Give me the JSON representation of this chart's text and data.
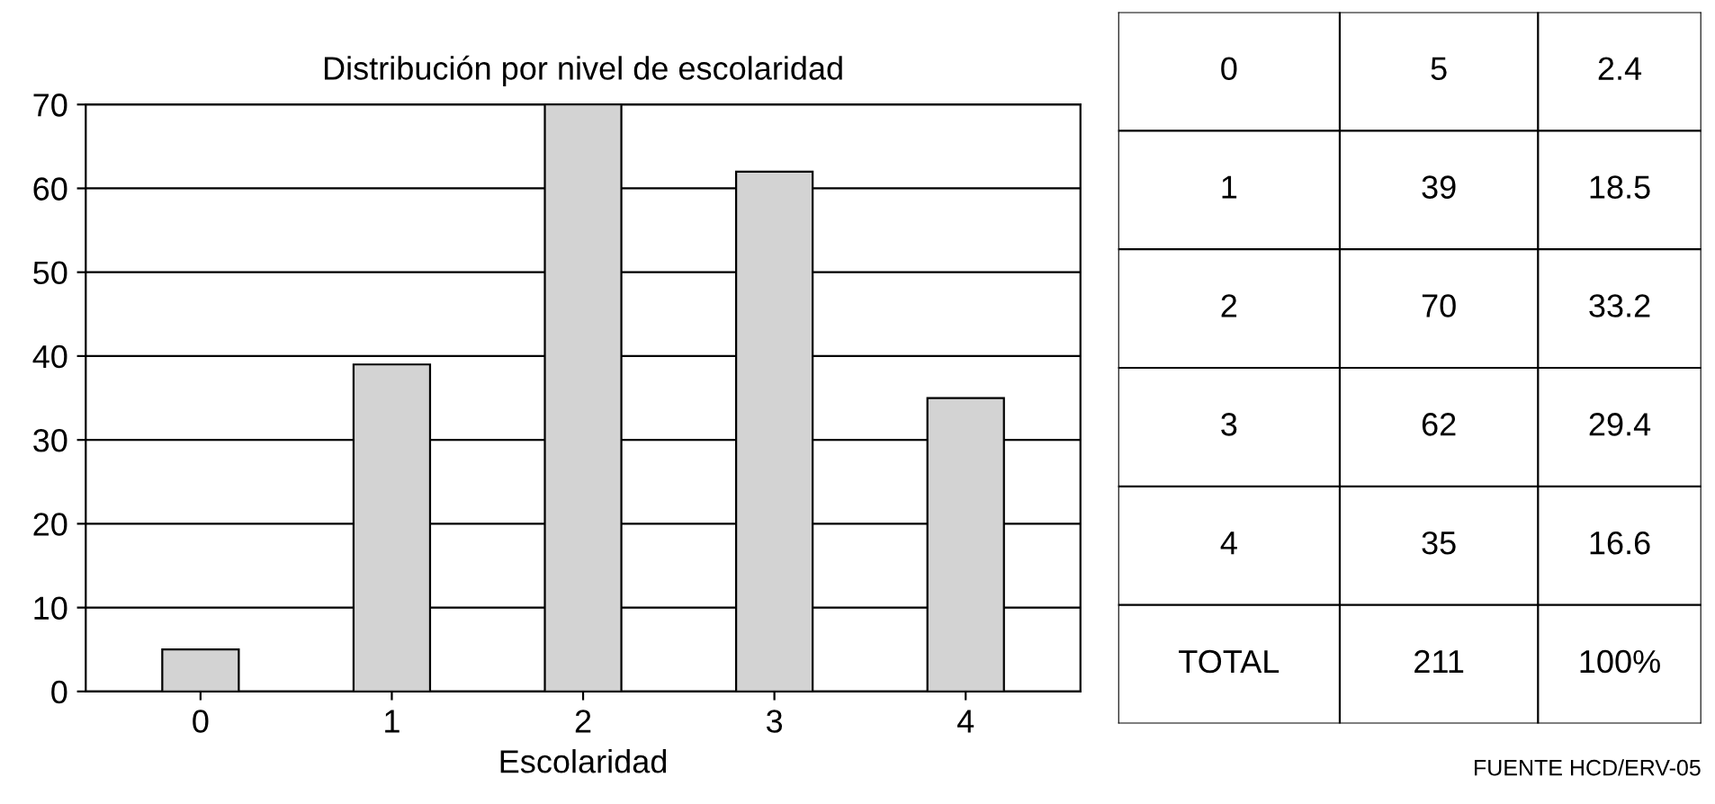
{
  "chart_data": {
    "type": "bar",
    "title": "Distribución por nivel de escolaridad",
    "xlabel": "Escolaridad",
    "categories": [
      "0",
      "1",
      "2",
      "3",
      "4"
    ],
    "values": [
      5,
      39,
      70,
      62,
      35
    ],
    "color": "#d3d3d3",
    "ylim": [
      0,
      70
    ],
    "yticks": [
      0,
      10,
      20,
      30,
      40,
      50,
      60,
      70
    ],
    "grid": "y",
    "annotations": [
      "0",
      "5",
      "2.4",
      "1",
      "39",
      "18.5",
      "2",
      "70",
      "33.2",
      "3",
      "62",
      "29.4",
      "4",
      "35",
      "16.6",
      "TOTAL",
      "211",
      "100%",
      "FUENTE HCD/ERV-05"
    ]
  }
}
